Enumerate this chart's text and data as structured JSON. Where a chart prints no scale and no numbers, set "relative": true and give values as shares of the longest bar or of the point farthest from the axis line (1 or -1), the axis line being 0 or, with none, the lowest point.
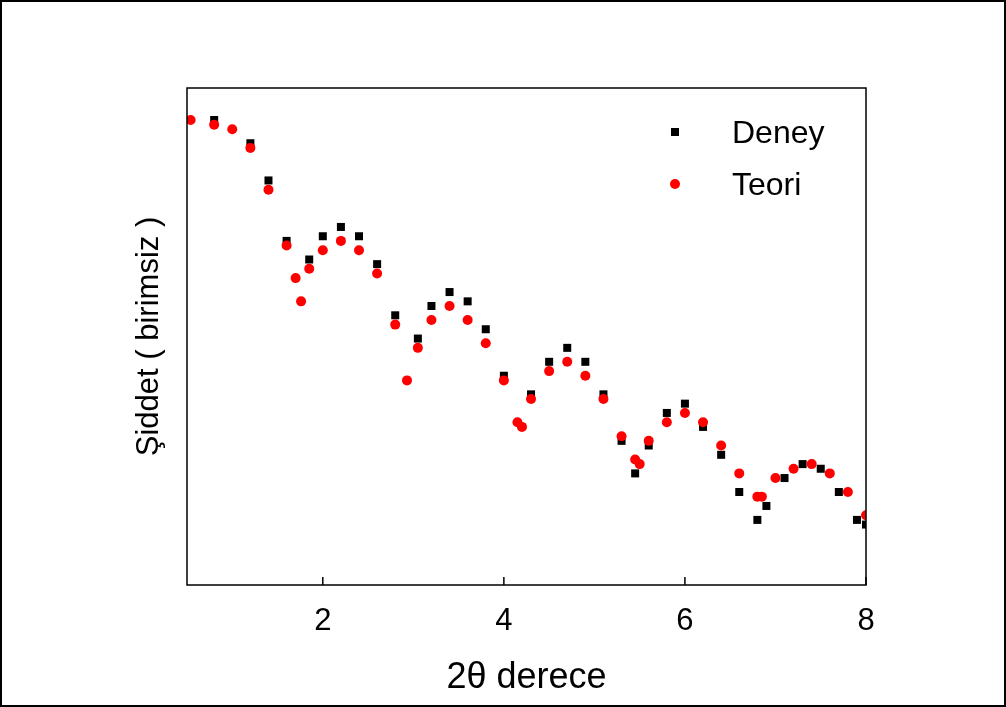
{
  "chart_data": {
    "type": "scatter",
    "relative": true,
    "xlabel": "2θ derece",
    "ylabel": "Şiddet ( birimsiz )",
    "xlim": [
      0.5,
      8
    ],
    "xticks": [
      2,
      4,
      6,
      8
    ],
    "tick_labels": "x",
    "grid": false,
    "legend": "top right",
    "series": [
      {
        "name": "Deney",
        "color": "#000000",
        "marker": "square",
        "x": [
          0.8,
          1.2,
          1.4,
          1.6,
          1.85,
          2.0,
          2.2,
          2.4,
          2.6,
          2.8,
          3.05,
          3.2,
          3.4,
          3.6,
          3.8,
          4.0,
          4.3,
          4.5,
          4.7,
          4.9,
          5.1,
          5.3,
          5.45,
          5.6,
          5.8,
          6.0,
          6.2,
          6.4,
          6.6,
          6.8,
          6.9,
          7.1,
          7.3,
          7.5,
          7.7,
          7.9,
          8.0
        ],
        "values": [
          1.0,
          0.95,
          0.87,
          0.74,
          0.7,
          0.75,
          0.77,
          0.75,
          0.69,
          0.58,
          0.53,
          0.6,
          0.63,
          0.61,
          0.55,
          0.45,
          0.41,
          0.48,
          0.51,
          0.48,
          0.41,
          0.31,
          0.24,
          0.3,
          0.37,
          0.39,
          0.34,
          0.28,
          0.2,
          0.14,
          0.17,
          0.23,
          0.26,
          0.25,
          0.2,
          0.14,
          0.13
        ]
      },
      {
        "name": "Teori",
        "color": "#ff0000",
        "marker": "circle",
        "x": [
          0.54,
          0.8,
          1.0,
          1.2,
          1.4,
          1.6,
          1.7,
          1.76,
          1.85,
          2.0,
          2.2,
          2.4,
          2.6,
          2.8,
          2.93,
          3.05,
          3.2,
          3.4,
          3.6,
          3.8,
          4.0,
          4.15,
          4.2,
          4.3,
          4.5,
          4.7,
          4.9,
          5.1,
          5.3,
          5.45,
          5.5,
          5.6,
          5.8,
          6.0,
          6.2,
          6.4,
          6.6,
          6.8,
          6.85,
          7.0,
          7.2,
          7.4,
          7.6,
          7.8,
          8.0
        ],
        "values": [
          1.0,
          0.99,
          0.98,
          0.94,
          0.85,
          0.73,
          0.66,
          0.61,
          0.68,
          0.72,
          0.74,
          0.72,
          0.67,
          0.56,
          0.44,
          0.51,
          0.57,
          0.6,
          0.57,
          0.52,
          0.44,
          0.35,
          0.34,
          0.4,
          0.46,
          0.48,
          0.45,
          0.4,
          0.32,
          0.27,
          0.26,
          0.31,
          0.35,
          0.37,
          0.35,
          0.3,
          0.24,
          0.19,
          0.19,
          0.23,
          0.25,
          0.26,
          0.24,
          0.2,
          0.15
        ]
      }
    ]
  }
}
